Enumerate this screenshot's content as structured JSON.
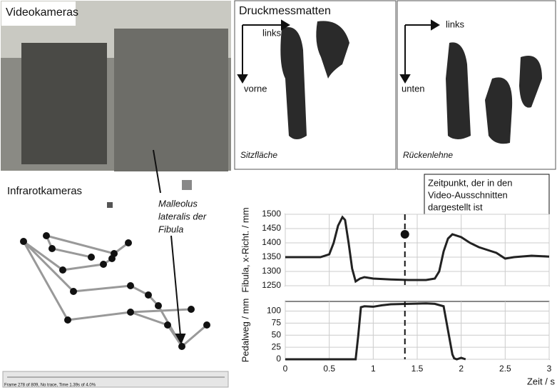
{
  "panels": {
    "video": {
      "title": "Videokameras"
    },
    "pressure": {
      "title": "Druckmessmatten",
      "seat": {
        "up": "links",
        "down": "vorne",
        "caption": "Sitzfläche"
      },
      "back": {
        "up": "links",
        "down": "unten",
        "caption": "Rückenlehne"
      }
    },
    "infrared": {
      "title": "Infrarotkameras",
      "annotation": [
        "Malleolus",
        "lateralis der",
        "Fibula"
      ],
      "status": "Frame 278 of 809, No trace, Time 1.39s of 4.0%"
    }
  },
  "annotation": [
    "Zeitpunkt, der in den",
    "Video-Ausschnitten",
    "dargestellt ist"
  ],
  "chart_data": [
    {
      "type": "line",
      "y_label": "Fibula, x-Richt. / mm",
      "color": "#222222",
      "grid": true,
      "x": [
        0,
        0.4,
        0.5,
        0.55,
        0.6,
        0.65,
        0.68,
        0.72,
        0.76,
        0.8,
        0.85,
        0.9,
        1.0,
        1.2,
        1.4,
        1.6,
        1.7,
        1.75,
        1.8,
        1.85,
        1.9,
        2.0,
        2.1,
        2.2,
        2.3,
        2.4,
        2.5,
        2.6,
        2.8,
        3.0
      ],
      "values": [
        1350,
        1350,
        1360,
        1400,
        1460,
        1490,
        1480,
        1400,
        1310,
        1265,
        1275,
        1280,
        1275,
        1272,
        1270,
        1270,
        1275,
        1300,
        1370,
        1415,
        1430,
        1420,
        1400,
        1385,
        1375,
        1365,
        1345,
        1350,
        1355,
        1352
      ],
      "xlim": [
        0,
        3
      ],
      "xticks": [
        0,
        0.5,
        1,
        1.5,
        2,
        2.5,
        3
      ],
      "ylim": [
        1250,
        1500
      ],
      "yticks": [
        1250,
        1300,
        1350,
        1400,
        1450,
        1500
      ],
      "vline": 1.36,
      "point": 1430
    },
    {
      "type": "line",
      "y_label": "Pedalweg / mm",
      "x_label": "Zeit / s",
      "color": "#222222",
      "grid": true,
      "x": [
        0,
        0.8,
        0.83,
        0.86,
        0.9,
        1.0,
        1.1,
        1.2,
        1.4,
        1.6,
        1.7,
        1.8,
        1.85,
        1.9,
        1.92,
        1.95,
        2.0,
        2.05
      ],
      "values": [
        0,
        0,
        50,
        108,
        110,
        109,
        112,
        114,
        115,
        116,
        115,
        110,
        60,
        10,
        2,
        0,
        3,
        0
      ],
      "xlim": [
        0,
        3
      ],
      "xticks": [
        0,
        0.5,
        1,
        1.5,
        2,
        2.5,
        3
      ],
      "ylim": [
        0,
        120
      ],
      "yticks": [
        0,
        25,
        50,
        75,
        100
      ],
      "vline": 1.36
    }
  ]
}
